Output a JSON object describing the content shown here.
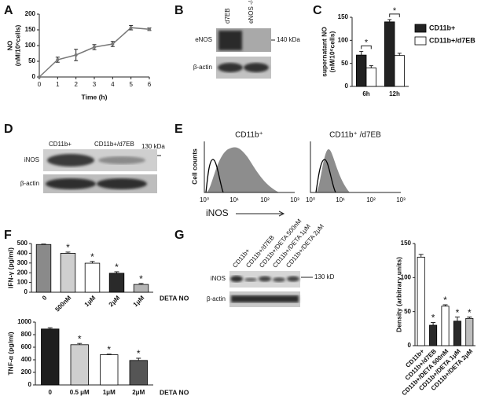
{
  "chart_data": [
    {
      "panel": "A",
      "type": "line",
      "y_label": [
        "NO",
        "(nM/10⁶cells)"
      ],
      "x_label": "Time (h)",
      "x": [
        0,
        1,
        2,
        3,
        4,
        5,
        6
      ],
      "values": [
        0,
        55,
        70,
        95,
        105,
        157,
        152
      ],
      "errors": [
        null,
        8,
        18,
        8,
        8,
        7,
        4
      ],
      "color": "#777777",
      "xlim": [
        0,
        6
      ],
      "xticks": [
        0,
        1,
        2,
        3,
        4,
        5,
        6
      ],
      "ylim": [
        0,
        200
      ],
      "yticks": [
        0,
        50,
        100,
        150,
        200
      ]
    },
    {
      "panel": "C",
      "type": "bar",
      "y_label": [
        "supernatant NO",
        "(nM/10⁶cells)"
      ],
      "categories": [
        "6h",
        "12h"
      ],
      "series": [
        {
          "name": "CD11b+",
          "color": "#222222",
          "values": [
            68,
            140
          ],
          "errors": [
            8,
            5
          ]
        },
        {
          "name": "CD11b+/d7EB",
          "color": "#ffffff",
          "values": [
            40,
            67
          ],
          "errors": [
            5,
            5
          ]
        }
      ],
      "markers": [
        "*",
        "*"
      ],
      "ylim": [
        0,
        150
      ],
      "yticks": [
        0,
        50,
        100,
        150
      ],
      "legend": "right"
    },
    {
      "panel": "F",
      "type": "bar",
      "y_label": "IFN-γ (pg/ml)",
      "x_label": "DETA NO",
      "categories": [
        "0",
        "500nM",
        "1μM",
        "2μM",
        "1μM"
      ],
      "values": [
        490,
        400,
        298,
        195,
        80
      ],
      "errors": [
        5,
        12,
        18,
        15,
        10
      ],
      "colors": [
        "#8a8a8a",
        "#cfcfcf",
        "#ffffff",
        "#2a2a2a",
        "#b5b5b5"
      ],
      "markers": [
        null,
        "*",
        "*",
        "*",
        "*"
      ],
      "ylim": [
        0,
        500
      ],
      "yticks": [
        0,
        100,
        200,
        300,
        400,
        500
      ]
    },
    {
      "type": "bar",
      "y_label": "TNF-α (pg/ml)",
      "x_label": "DETA NO",
      "categories": [
        "0",
        "0.5 μM",
        "1μM",
        "2μM"
      ],
      "values": [
        890,
        640,
        480,
        390
      ],
      "errors": [
        20,
        20,
        10,
        35
      ],
      "colors": [
        "#1e1e1e",
        "#cfcfcf",
        "#ffffff",
        "#555555"
      ],
      "markers": [
        null,
        "*",
        "*",
        "*"
      ],
      "ylim": [
        0,
        1000
      ],
      "yticks": [
        0,
        200,
        400,
        600,
        800,
        1000
      ]
    },
    {
      "panel": "G",
      "type": "bar",
      "y_label": "Density (arbitrary units)",
      "categories": [
        "CD11b+",
        "CD11b+/d7EB",
        "CD11b+/DETA 500nM",
        "CD11b+/DETA 1μM",
        "CD11b+/DETA 2μM"
      ],
      "values": [
        130,
        30,
        58,
        36,
        40
      ],
      "errors": [
        4,
        4,
        2,
        6,
        2
      ],
      "colors": [
        "#ffffff",
        "#2a2a2a",
        "#ffffff",
        "#2a2a2a",
        "#bdbdbd"
      ],
      "markers": [
        null,
        "*",
        "*",
        "*",
        "*"
      ],
      "ylim": [
        0,
        150
      ],
      "yticks": [
        0,
        50,
        100,
        150
      ]
    }
  ],
  "blot_b": {
    "panel": "B",
    "lanes": [
      "d7EB",
      "eNOS -/-"
    ],
    "rows": [
      "eNOS",
      "β-actin"
    ],
    "marker": "140 kDa"
  },
  "blot_d": {
    "panel": "D",
    "lanes": [
      "CD11b+",
      "CD11b+/d7EB"
    ],
    "rows": [
      "iNOS",
      "β-actin"
    ],
    "marker": "130 kDa"
  },
  "flow_e": {
    "panel": "E",
    "y_label": "Cell counts",
    "x_label": "iNOS",
    "plots": [
      {
        "title": "CD11b⁺",
        "xticks": [
          "10⁰",
          "10¹",
          "10²",
          "10³"
        ]
      },
      {
        "title": "CD11b⁺ /d7EB",
        "xticks": [
          "10⁰",
          "10¹",
          "10²",
          "10³"
        ]
      }
    ]
  },
  "blot_g": {
    "lanes": [
      "CD11b+",
      "CD11b+/d7EB",
      "CD11b+/DETA 500nM",
      "CD11b+/DETA 1μM",
      "CD11b+/DETA 2μM"
    ],
    "rows": [
      "iNOS",
      "β-actin"
    ],
    "marker": "130 kD"
  }
}
